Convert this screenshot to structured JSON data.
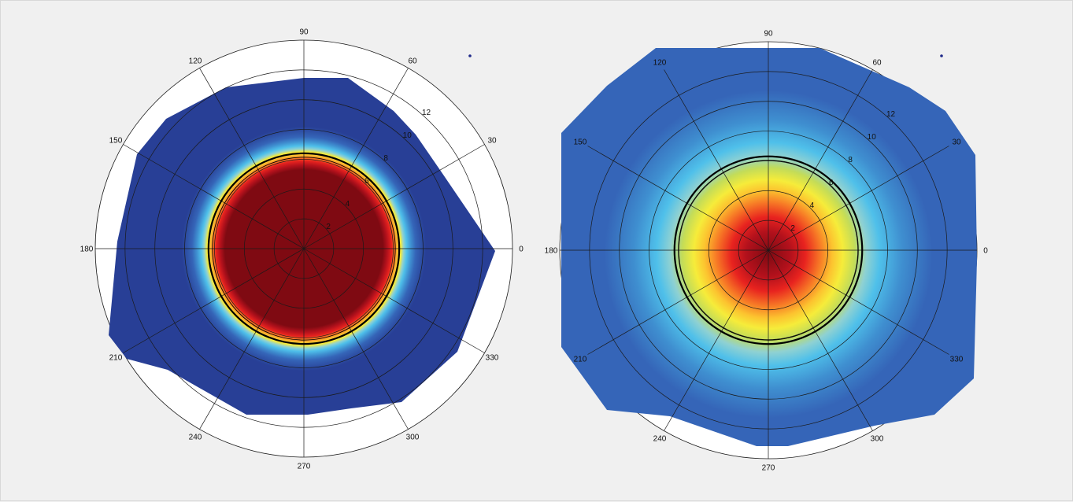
{
  "chart_data": [
    {
      "type": "heatmap",
      "title": "",
      "projection": "polar",
      "angle_ticks_deg": [
        0,
        30,
        60,
        90,
        120,
        150,
        180,
        210,
        240,
        270,
        300,
        330
      ],
      "angle_tick_labels": [
        "0",
        "30",
        "60",
        "90",
        "120",
        "150",
        "180",
        "210",
        "240",
        "270",
        "300",
        "330"
      ],
      "radial_ticks": [
        2,
        4,
        6,
        8,
        10,
        12
      ],
      "radial_tick_labels": [
        "2",
        "4",
        "6",
        "8",
        "10",
        "12"
      ],
      "rlim": [
        0,
        14
      ],
      "grid": true,
      "highlight_circle_radius": 6.4,
      "colormap": [
        "#7f0a12",
        "#b3111c",
        "#e8231f",
        "#f77a26",
        "#fcc32f",
        "#f6ec3a",
        "#c3dc58",
        "#8fd1d2",
        "#4fc0ea",
        "#3f8fd0",
        "#3565b8",
        "#283f96"
      ],
      "profile": {
        "description_values": "color band index by radius (0 = dark red center, 11 = deep blue)",
        "r": [
          0,
          5.3,
          5.6,
          5.9,
          6.1,
          6.3,
          6.5,
          6.7,
          6.9,
          7.2,
          7.5,
          8.2,
          14
        ],
        "band": [
          0,
          0,
          1,
          2,
          3,
          4,
          5,
          7,
          8,
          9,
          10,
          11,
          11
        ]
      }
    },
    {
      "type": "heatmap",
      "title": "",
      "projection": "polar",
      "angle_ticks_deg": [
        0,
        30,
        60,
        90,
        120,
        150,
        180,
        210,
        240,
        270,
        300,
        330
      ],
      "angle_tick_labels": [
        "0",
        "30",
        "60",
        "90",
        "120",
        "150",
        "180",
        "210",
        "240",
        "270",
        "300",
        "330"
      ],
      "radial_ticks": [
        2,
        4,
        6,
        8,
        10,
        12
      ],
      "radial_tick_labels": [
        "2",
        "4",
        "6",
        "8",
        "10",
        "12"
      ],
      "rlim": [
        0,
        14
      ],
      "grid": true,
      "highlight_circle_radius": 6.3,
      "colormap": [
        "#7f0a12",
        "#b3111c",
        "#e8231f",
        "#f77a26",
        "#fcc32f",
        "#f6ec3a",
        "#c3dc58",
        "#8fd1d2",
        "#4fc0ea",
        "#3f8fd0",
        "#3565b8",
        "#283f96"
      ],
      "profile": {
        "description_values": "color band index by radius (0 = dark red center, 11 = deep blue)",
        "r": [
          0,
          1.5,
          2.5,
          3.5,
          4.3,
          5.0,
          5.8,
          6.6,
          7.5,
          9.0,
          11.0,
          14
        ],
        "band": [
          0,
          1,
          2,
          3,
          4,
          5,
          6,
          7,
          8,
          9,
          10,
          10
        ]
      }
    }
  ]
}
